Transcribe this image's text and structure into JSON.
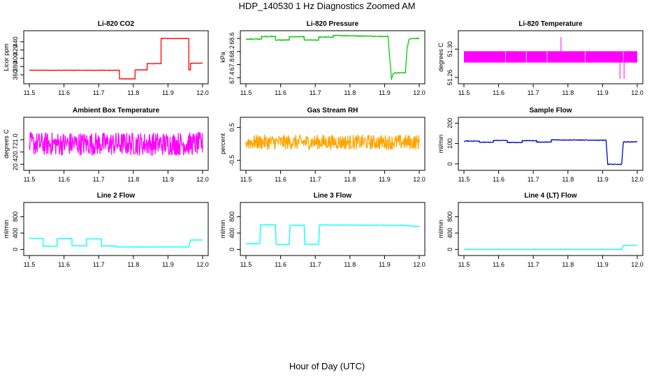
{
  "page": {
    "title": "HDP_140530  1 Hz Diagnostics Zoomed AM",
    "x_axis_label": "Hour of Day (UTC)"
  },
  "chart_data": [
    {
      "type": "line",
      "title": "Li-820 CO2",
      "ylabel": "Licor ppm",
      "color": "#ff0000",
      "xlim": [
        11.5,
        12.0
      ],
      "ylim": [
        345,
        460
      ],
      "xticks": [
        "11.5",
        "11.6",
        "11.7",
        "11.8",
        "11.9",
        "12.0"
      ],
      "yticks": [
        360,
        380,
        400,
        420,
        440
      ],
      "series": [
        {
          "noise": 0.6,
          "x": [
            11.5,
            11.76,
            11.76,
            11.805,
            11.805,
            11.84,
            11.84,
            11.88,
            11.88,
            11.96,
            11.96,
            11.965,
            11.965,
            12.0
          ],
          "y": [
            371,
            371,
            350,
            350,
            372,
            372,
            387,
            387,
            448,
            448,
            372,
            372,
            388,
            388
          ]
        }
      ]
    },
    {
      "type": "line",
      "title": "Li-820 Pressure",
      "ylabel": "kPa",
      "color": "#00cc00",
      "xlim": [
        11.5,
        12.0
      ],
      "ylim": [
        67.3,
        68.75
      ],
      "xticks": [
        "11.5",
        "11.6",
        "11.7",
        "11.8",
        "11.9",
        "12.0"
      ],
      "yticks": [
        "67.4",
        "67.8",
        "68.2",
        "68.6"
      ],
      "series": [
        {
          "noise": 0.012,
          "x": [
            11.5,
            11.545,
            11.545,
            11.585,
            11.585,
            11.625,
            11.625,
            11.668,
            11.668,
            11.71,
            11.71,
            11.752,
            11.752,
            11.91,
            11.92,
            11.925,
            11.93,
            11.96,
            11.965,
            11.97,
            11.975,
            12.0
          ],
          "y": [
            68.58,
            68.58,
            68.66,
            68.66,
            68.55,
            68.55,
            68.65,
            68.65,
            68.55,
            68.55,
            68.64,
            68.64,
            68.69,
            68.66,
            67.35,
            67.52,
            67.55,
            67.55,
            68.3,
            68.55,
            68.6,
            68.6
          ]
        }
      ]
    },
    {
      "type": "line",
      "title": "Li-820 Temperature",
      "ylabel": "degrees C",
      "color": "#ff00ff",
      "xlim": [
        11.5,
        12.0
      ],
      "ylim": [
        51.255,
        51.322
      ],
      "xticks": [
        "11.5",
        "11.6",
        "11.7",
        "11.8",
        "11.9",
        "12.0"
      ],
      "yticks": [
        "51.26",
        "51.30"
      ],
      "series": [
        {
          "band": [
            51.281,
            51.297
          ],
          "spikes": [
            [
              11.78,
              51.317
            ],
            [
              11.95,
              51.258
            ],
            [
              11.962,
              51.258
            ]
          ],
          "x": [
            11.5,
            12.0
          ],
          "y": [
            51.289,
            51.289
          ]
        }
      ]
    },
    {
      "type": "line",
      "title": "Ambient Box Temperature",
      "ylabel": "degrees C",
      "color": "#ff00ff",
      "xlim": [
        11.5,
        12.0
      ],
      "ylim": [
        20.32,
        21.48
      ],
      "xticks": [
        "11.5",
        "11.6",
        "11.7",
        "11.8",
        "11.9",
        "12.0"
      ],
      "yticks": [
        "20.4",
        "20.7",
        "21.0"
      ],
      "series": [
        {
          "noise": 0.28,
          "x": [
            11.5,
            12.0
          ],
          "y": [
            20.9,
            20.9
          ]
        }
      ]
    },
    {
      "type": "line",
      "title": "Gas Stream RH",
      "ylabel": "percent",
      "color": "#ffa500",
      "xlim": [
        11.5,
        12.0
      ],
      "ylim": [
        -0.72,
        0.72
      ],
      "xticks": [
        "11.5",
        "11.6",
        "11.7",
        "11.8",
        "11.9",
        "12.0"
      ],
      "yticks": [
        "-0.5",
        "0.5"
      ],
      "series": [
        {
          "noise": 0.22,
          "x": [
            11.5,
            12.0
          ],
          "y": [
            0.05,
            0.05
          ]
        }
      ]
    },
    {
      "type": "line",
      "title": "Sample Flow",
      "ylabel": "ml/min",
      "color": "#0000cc",
      "xlim": [
        11.5,
        12.0
      ],
      "ylim": [
        -18,
        215
      ],
      "xticks": [
        "11.5",
        "11.6",
        "11.7",
        "11.8",
        "11.9",
        "12.0"
      ],
      "yticks": [
        0,
        100,
        200
      ],
      "series": [
        {
          "noise": 1.5,
          "x": [
            11.5,
            11.545,
            11.545,
            11.585,
            11.585,
            11.625,
            11.625,
            11.668,
            11.668,
            11.71,
            11.71,
            11.752,
            11.752,
            11.91,
            11.915,
            11.955,
            11.96,
            12.0
          ],
          "y": [
            112,
            112,
            106,
            106,
            115,
            115,
            105,
            105,
            114,
            114,
            107,
            107,
            118,
            116,
            -2,
            -2,
            108,
            108
          ]
        }
      ]
    },
    {
      "type": "line",
      "title": "Line 2 Flow",
      "ylabel": "ml/min",
      "color": "#00ffff",
      "xlim": [
        11.5,
        12.0
      ],
      "ylim": [
        -80,
        1080
      ],
      "xticks": [
        "11.5",
        "11.6",
        "11.7",
        "11.8",
        "11.9",
        "12.0"
      ],
      "yticks": [
        0,
        400,
        800
      ],
      "series": [
        {
          "noise": 2,
          "x": [
            11.5,
            11.54,
            11.54,
            11.58,
            11.58,
            11.623,
            11.623,
            11.665,
            11.665,
            11.708,
            11.708,
            11.75,
            11.75,
            11.96,
            11.965,
            12.0
          ],
          "y": [
            270,
            270,
            80,
            80,
            265,
            265,
            90,
            90,
            260,
            260,
            85,
            85,
            60,
            60,
            230,
            230
          ]
        }
      ]
    },
    {
      "type": "line",
      "title": "Line 3 Flow",
      "ylabel": "ml/min",
      "color": "#00ffff",
      "xlim": [
        11.5,
        12.0
      ],
      "ylim": [
        -80,
        1080
      ],
      "xticks": [
        "11.5",
        "11.6",
        "11.7",
        "11.8",
        "11.9",
        "12.0"
      ],
      "yticks": [
        0,
        400,
        800
      ],
      "series": [
        {
          "noise": 5,
          "x": [
            11.5,
            11.54,
            11.542,
            11.585,
            11.587,
            11.625,
            11.627,
            11.668,
            11.67,
            11.71,
            11.712,
            11.95,
            12.0
          ],
          "y": [
            140,
            140,
            600,
            600,
            120,
            120,
            590,
            590,
            125,
            125,
            600,
            590,
            560
          ]
        }
      ]
    },
    {
      "type": "line",
      "title": "Line 4 (LT) Flow",
      "ylabel": "ml/min",
      "color": "#00ffff",
      "xlim": [
        11.5,
        12.0
      ],
      "ylim": [
        -80,
        1080
      ],
      "xticks": [
        "11.5",
        "11.6",
        "11.7",
        "11.8",
        "11.9",
        "12.0"
      ],
      "yticks": [
        0,
        400,
        800
      ],
      "series": [
        {
          "noise": 0,
          "x": [
            11.5,
            11.955,
            11.96,
            12.0
          ],
          "y": [
            0,
            0,
            100,
            100
          ]
        }
      ]
    }
  ]
}
